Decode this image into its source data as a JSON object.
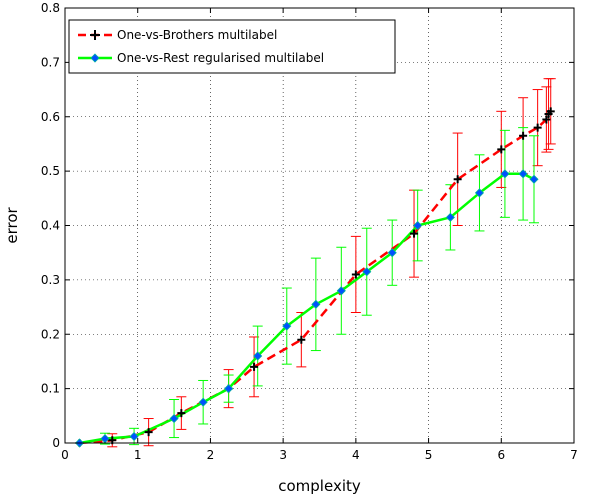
{
  "chart_data": {
    "type": "line",
    "title": "",
    "xlabel": "complexity",
    "ylabel": "error",
    "xlim": [
      0,
      7
    ],
    "ylim": [
      0,
      0.8
    ],
    "xticks": [
      "0",
      "1",
      "2",
      "3",
      "4",
      "5",
      "6",
      "7"
    ],
    "yticks": [
      "0",
      "0.1",
      "0.2",
      "0.3",
      "0.4",
      "0.5",
      "0.6",
      "0.7",
      "0.8"
    ],
    "grid": true,
    "legend_position": "top-left",
    "series": [
      {
        "name": "One-vs-Brothers multilabel",
        "color": "#ff0000",
        "line_style": "dashed",
        "marker": "plus",
        "marker_color": "#000000",
        "x": [
          0.2,
          0.65,
          1.15,
          1.6,
          2.25,
          2.6,
          3.25,
          4.0,
          4.8,
          5.4,
          6.0,
          6.3,
          6.5,
          6.62,
          6.65,
          6.68
        ],
        "y": [
          0.0,
          0.005,
          0.02,
          0.055,
          0.1,
          0.14,
          0.19,
          0.31,
          0.385,
          0.485,
          0.54,
          0.565,
          0.58,
          0.595,
          0.605,
          0.61
        ],
        "err": [
          0.0,
          0.012,
          0.025,
          0.03,
          0.035,
          0.055,
          0.05,
          0.07,
          0.08,
          0.085,
          0.07,
          0.07,
          0.07,
          0.06,
          0.065,
          0.06
        ]
      },
      {
        "name": "One-vs-Rest regularised multilabel",
        "color": "#00ff00",
        "line_style": "solid",
        "marker": "diamond",
        "marker_color": "#0050ff",
        "x": [
          0.2,
          0.55,
          0.95,
          1.5,
          1.9,
          2.25,
          2.65,
          3.05,
          3.45,
          3.8,
          4.15,
          4.5,
          4.85,
          5.3,
          5.7,
          6.05,
          6.3,
          6.45
        ],
        "y": [
          0.0,
          0.008,
          0.012,
          0.045,
          0.075,
          0.1,
          0.16,
          0.215,
          0.255,
          0.28,
          0.315,
          0.35,
          0.4,
          0.415,
          0.46,
          0.495,
          0.495,
          0.485
        ],
        "err": [
          0.0,
          0.01,
          0.015,
          0.035,
          0.04,
          0.025,
          0.055,
          0.07,
          0.085,
          0.08,
          0.08,
          0.06,
          0.065,
          0.06,
          0.07,
          0.08,
          0.085,
          0.08
        ]
      }
    ]
  }
}
